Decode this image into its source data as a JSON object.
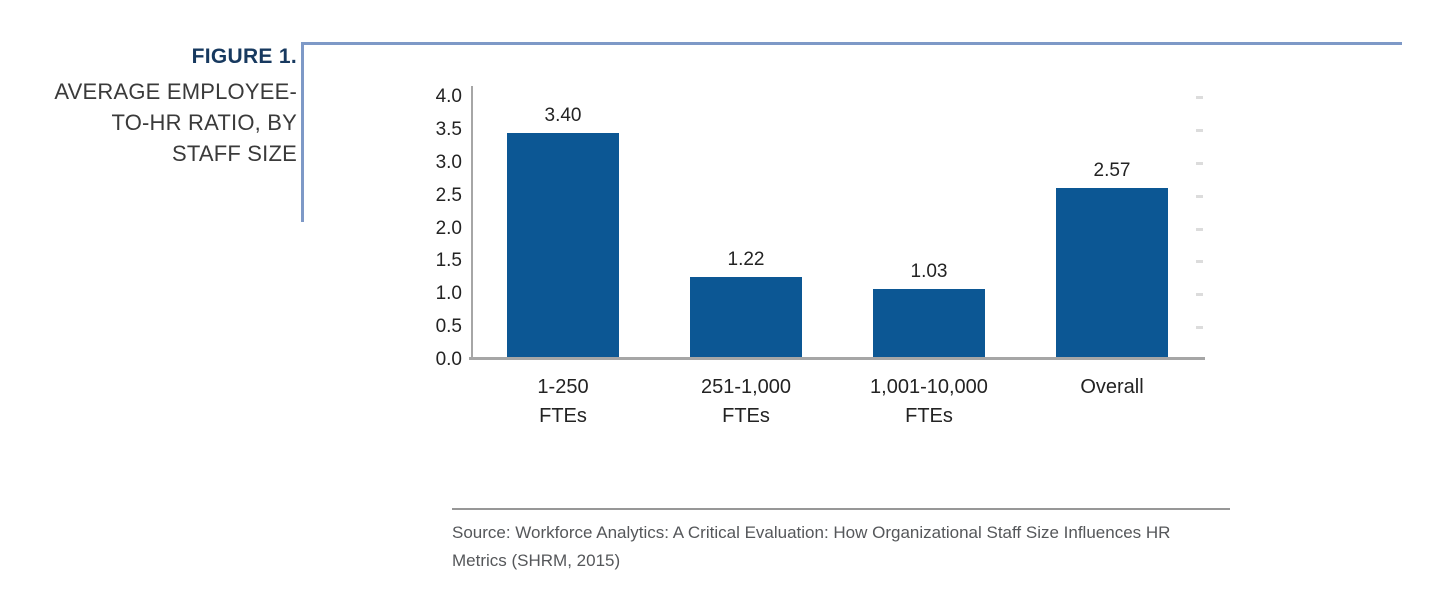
{
  "figure": {
    "label": "FIGURE 1.",
    "title": "AVERAGE EMPLOYEE-TO-HR RATIO, BY STAFF SIZE",
    "title_lines": [
      "AVERAGE EMPLOYEE-",
      "TO-HR RATIO, BY",
      "STAFF SIZE"
    ]
  },
  "chart_data": {
    "type": "bar",
    "title": "AVERAGE EMPLOYEE-TO-HR RATIO, BY STAFF SIZE",
    "categories": [
      "1-250 FTEs",
      "251-1,000 FTEs",
      "1,001-10,000 FTEs",
      "Overall"
    ],
    "category_lines": [
      [
        "1-250",
        "FTEs"
      ],
      [
        "251-1,000",
        "FTEs"
      ],
      [
        "1,001-10,000",
        "FTEs"
      ],
      [
        "Overall"
      ]
    ],
    "values": [
      3.4,
      1.22,
      1.03,
      2.57
    ],
    "value_labels": [
      "3.40",
      "1.22",
      "1.03",
      "2.57"
    ],
    "xlabel": "",
    "ylabel": "",
    "ylim": [
      0.0,
      4.0
    ],
    "y_tick_step": 0.5,
    "y_ticks": [
      "4.0",
      "3.5",
      "3.0",
      "2.5",
      "2.0",
      "1.5",
      "1.0",
      "0.5",
      "0.0"
    ],
    "grid": false,
    "legend": null,
    "bar_color": "#0C5794",
    "axis_color": "#A6A6A6",
    "right_tick_color": "#DCDCDC"
  },
  "source": {
    "text": "Source: Workforce Analytics: A Critical Evaluation: How Organizational Staff Size Influences HR Metrics (SHRM, 2015)",
    "lines": [
      "Source: Workforce Analytics: A Critical Evaluation: How Organizational Staff Size Influences HR",
      "Metrics (SHRM, 2015)"
    ]
  },
  "colors": {
    "accent_border": "#7E99C7",
    "figure_label_text": "#17395F",
    "figure_title_text": "#3A3A3A",
    "bar": "#0C5794",
    "axis": "#A6A6A6",
    "tick_text": "#232323",
    "source_text": "#55575A",
    "source_divider": "#979797",
    "background": "#FFFFFF"
  }
}
